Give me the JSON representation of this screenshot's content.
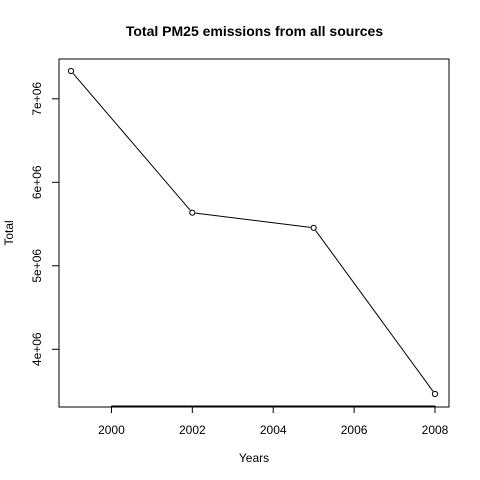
{
  "chart_data": {
    "type": "line",
    "title": "Total PM25 emissions from all sources",
    "xlabel": "Years",
    "ylabel": "Total",
    "x": [
      1999,
      2002,
      2005,
      2008
    ],
    "series": [
      {
        "values": [
          7332967,
          5635780,
          5454703,
          3464206
        ]
      }
    ],
    "marker": "open-circle",
    "xlim": [
      1999,
      2008
    ],
    "ylim": [
      3464206,
      7332967
    ],
    "x_ticks": [
      2000,
      2002,
      2004,
      2006,
      2008
    ],
    "x_tick_labels": [
      "2000",
      "2002",
      "2004",
      "2006",
      "2008"
    ],
    "y_ticks": [
      4000000,
      5000000,
      6000000,
      7000000
    ],
    "y_tick_labels": [
      "4e+06",
      "5e+06",
      "6e+06",
      "7e+06"
    ],
    "grid": false,
    "line_color": "#000000"
  }
}
